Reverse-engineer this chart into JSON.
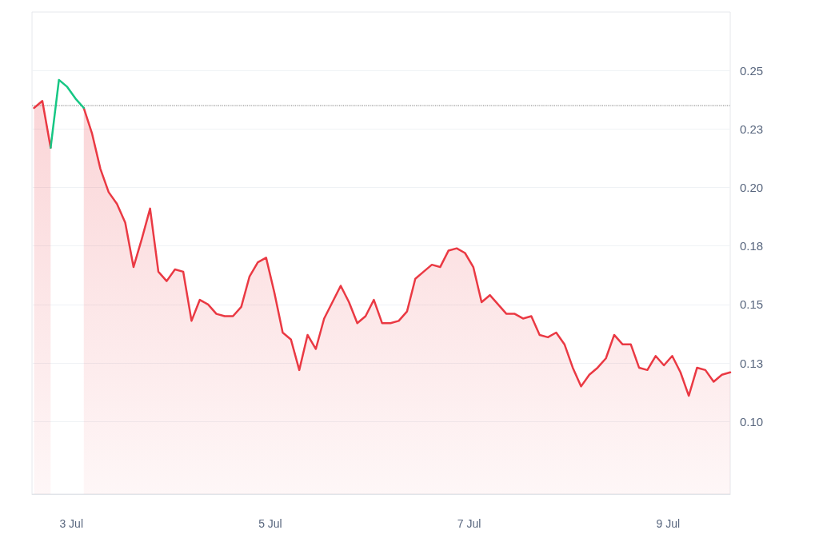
{
  "chart_data": {
    "type": "area",
    "x": [
      "--07-02T15:00",
      "--07-02T17:00",
      "--07-02T19:00",
      "--07-02T21:00",
      "--07-02T23:00",
      "--07-03T01:00",
      "--07-03T03:00",
      "--07-03T05:00",
      "--07-03T07:00",
      "--07-03T09:00",
      "--07-03T11:00",
      "--07-03T13:00",
      "--07-03T15:00",
      "--07-03T17:00",
      "--07-03T19:00",
      "--07-03T21:00",
      "--07-03T23:00",
      "--07-04T01:00",
      "--07-04T03:00",
      "--07-04T05:00",
      "--07-04T07:00",
      "--07-04T09:00",
      "--07-04T11:00",
      "--07-04T13:00",
      "--07-04T15:00",
      "--07-04T17:00",
      "--07-04T19:00",
      "--07-04T21:00",
      "--07-04T23:00",
      "--07-05T01:00",
      "--07-05T03:00",
      "--07-05T05:00",
      "--07-05T07:00",
      "--07-05T09:00",
      "--07-05T11:00",
      "--07-05T13:00",
      "--07-05T15:00",
      "--07-05T17:00",
      "--07-05T19:00",
      "--07-05T21:00",
      "--07-05T23:00",
      "--07-06T01:00",
      "--07-06T03:00",
      "--07-06T05:00",
      "--07-06T07:00",
      "--07-06T09:00",
      "--07-06T11:00",
      "--07-06T13:00",
      "--07-06T15:00",
      "--07-06T17:00",
      "--07-06T19:00",
      "--07-06T21:00",
      "--07-06T23:00",
      "--07-07T01:00",
      "--07-07T03:00",
      "--07-07T05:00",
      "--07-07T07:00",
      "--07-07T09:00",
      "--07-07T11:00",
      "--07-07T13:00",
      "--07-07T15:00",
      "--07-07T17:00",
      "--07-07T19:00",
      "--07-07T21:00",
      "--07-07T23:00",
      "--07-08T01:00",
      "--07-08T03:00",
      "--07-08T05:00",
      "--07-08T07:00",
      "--07-08T09:00",
      "--07-08T11:00",
      "--07-08T13:00",
      "--07-08T15:00",
      "--07-08T17:00",
      "--07-08T19:00",
      "--07-08T21:00",
      "--07-08T23:00",
      "--07-09T01:00",
      "--07-09T03:00",
      "--07-09T05:00",
      "--07-09T07:00",
      "--07-09T09:00",
      "--07-09T11:00",
      "--07-09T13:00",
      "--07-09T15:00"
    ],
    "series": [
      {
        "color": "#ea3943",
        "values": [
          0.234,
          0.237,
          0.217,
          null,
          null,
          null,
          0.234,
          0.223,
          0.208,
          0.198,
          0.193,
          0.185,
          0.166,
          0.178,
          0.191,
          0.164,
          0.16,
          0.165,
          0.164,
          0.143,
          0.152,
          0.15,
          0.146,
          0.145,
          0.145,
          0.149,
          0.162,
          0.168,
          0.17,
          0.155,
          0.138,
          0.135,
          0.122,
          0.137,
          0.131,
          0.144,
          0.151,
          0.158,
          0.151,
          0.142,
          0.145,
          0.152,
          0.142,
          0.142,
          0.143,
          0.147,
          0.161,
          0.164,
          0.167,
          0.166,
          0.173,
          0.174,
          0.172,
          0.166,
          0.151,
          0.154,
          0.15,
          0.146,
          0.146,
          0.144,
          0.145,
          0.137,
          0.136,
          0.138,
          0.133,
          0.123,
          0.115,
          0.12,
          0.123,
          0.127,
          0.137,
          0.133,
          0.133,
          0.123,
          0.122,
          0.128,
          0.124,
          0.128,
          0.121,
          0.111,
          0.123,
          0.122,
          0.117,
          0.12,
          0.121
        ]
      },
      {
        "type": "line",
        "color": "#16c784",
        "x": [
          "--07-02T19:00",
          "--07-02T21:00",
          "--07-02T23:00",
          "--07-03T01:00",
          "--07-03T03:00"
        ],
        "values": [
          0.217,
          0.246,
          0.243,
          0.238,
          0.234
        ]
      }
    ],
    "xlim": [
      "--07-02T14:30",
      "--07-09T15:00"
    ],
    "xticks": [
      {
        "value": "--07-03",
        "label": "3 Jul"
      },
      {
        "value": "--07-05",
        "label": "5 Jul"
      },
      {
        "value": "--07-07",
        "label": "7 Jul"
      },
      {
        "value": "--07-09",
        "label": "9 Jul"
      }
    ],
    "ylim": [
      0.069,
      0.275
    ],
    "yticks": [
      {
        "value": 0.1,
        "label": "0.10"
      },
      {
        "value": 0.125,
        "label": "0.13"
      },
      {
        "value": 0.15,
        "label": "0.15"
      },
      {
        "value": 0.175,
        "label": "0.18"
      },
      {
        "value": 0.2,
        "label": "0.20"
      },
      {
        "value": 0.225,
        "label": "0.23"
      },
      {
        "value": 0.25,
        "label": "0.25"
      }
    ],
    "ref_lines": [
      {
        "axis": "y",
        "value": 0.235,
        "color": "#999999",
        "line_style": "dotted"
      }
    ],
    "grid": "y",
    "marker": "none",
    "line_style": "solid"
  }
}
